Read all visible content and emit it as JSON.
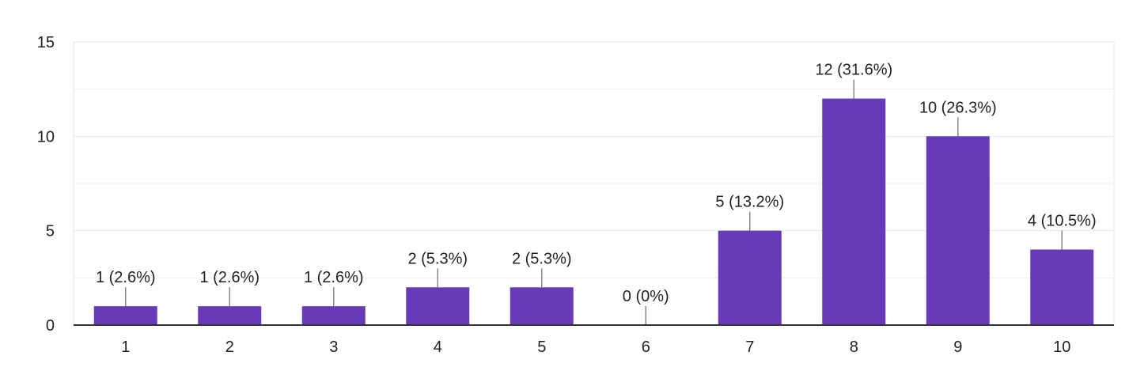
{
  "chart_data": {
    "type": "bar",
    "categories": [
      "1",
      "2",
      "3",
      "4",
      "5",
      "6",
      "7",
      "8",
      "9",
      "10"
    ],
    "values": [
      1,
      1,
      1,
      2,
      2,
      0,
      5,
      12,
      10,
      4
    ],
    "data_labels": [
      "1 (2.6%)",
      "1 (2.6%)",
      "1 (2.6%)",
      "2 (5.3%)",
      "2 (5.3%)",
      "0 (0%)",
      "5 (13.2%)",
      "12 (31.6%)",
      "10 (26.3%)",
      "4 (10.5%)"
    ],
    "y_ticks": [
      "0",
      "5",
      "10",
      "15"
    ],
    "ylim": [
      0,
      15
    ],
    "grid": true,
    "bar_color": "#673ab7",
    "title": "",
    "xlabel": "",
    "ylabel": ""
  }
}
